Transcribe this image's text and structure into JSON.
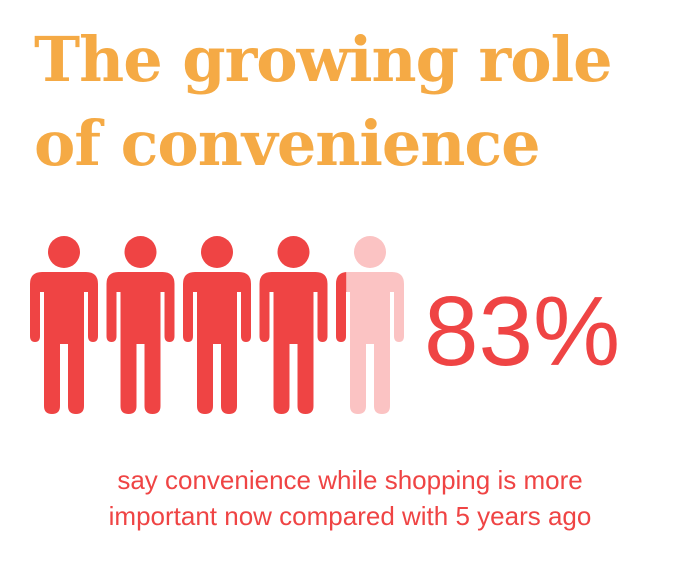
{
  "title": {
    "line1": "The growing role",
    "line2": "of convenience"
  },
  "chart_data": {
    "type": "pictogram",
    "value_percent": 83,
    "icon": "person-icon",
    "total_icons": 5,
    "filled_icons": 4.15,
    "label": "83%",
    "colors": {
      "filled": "#ef4444",
      "empty": "#fbc3c3",
      "title": "#f5aa45"
    }
  },
  "caption": {
    "line1": "say convenience while shopping is more",
    "line2": "important now compared with 5 years ago"
  }
}
